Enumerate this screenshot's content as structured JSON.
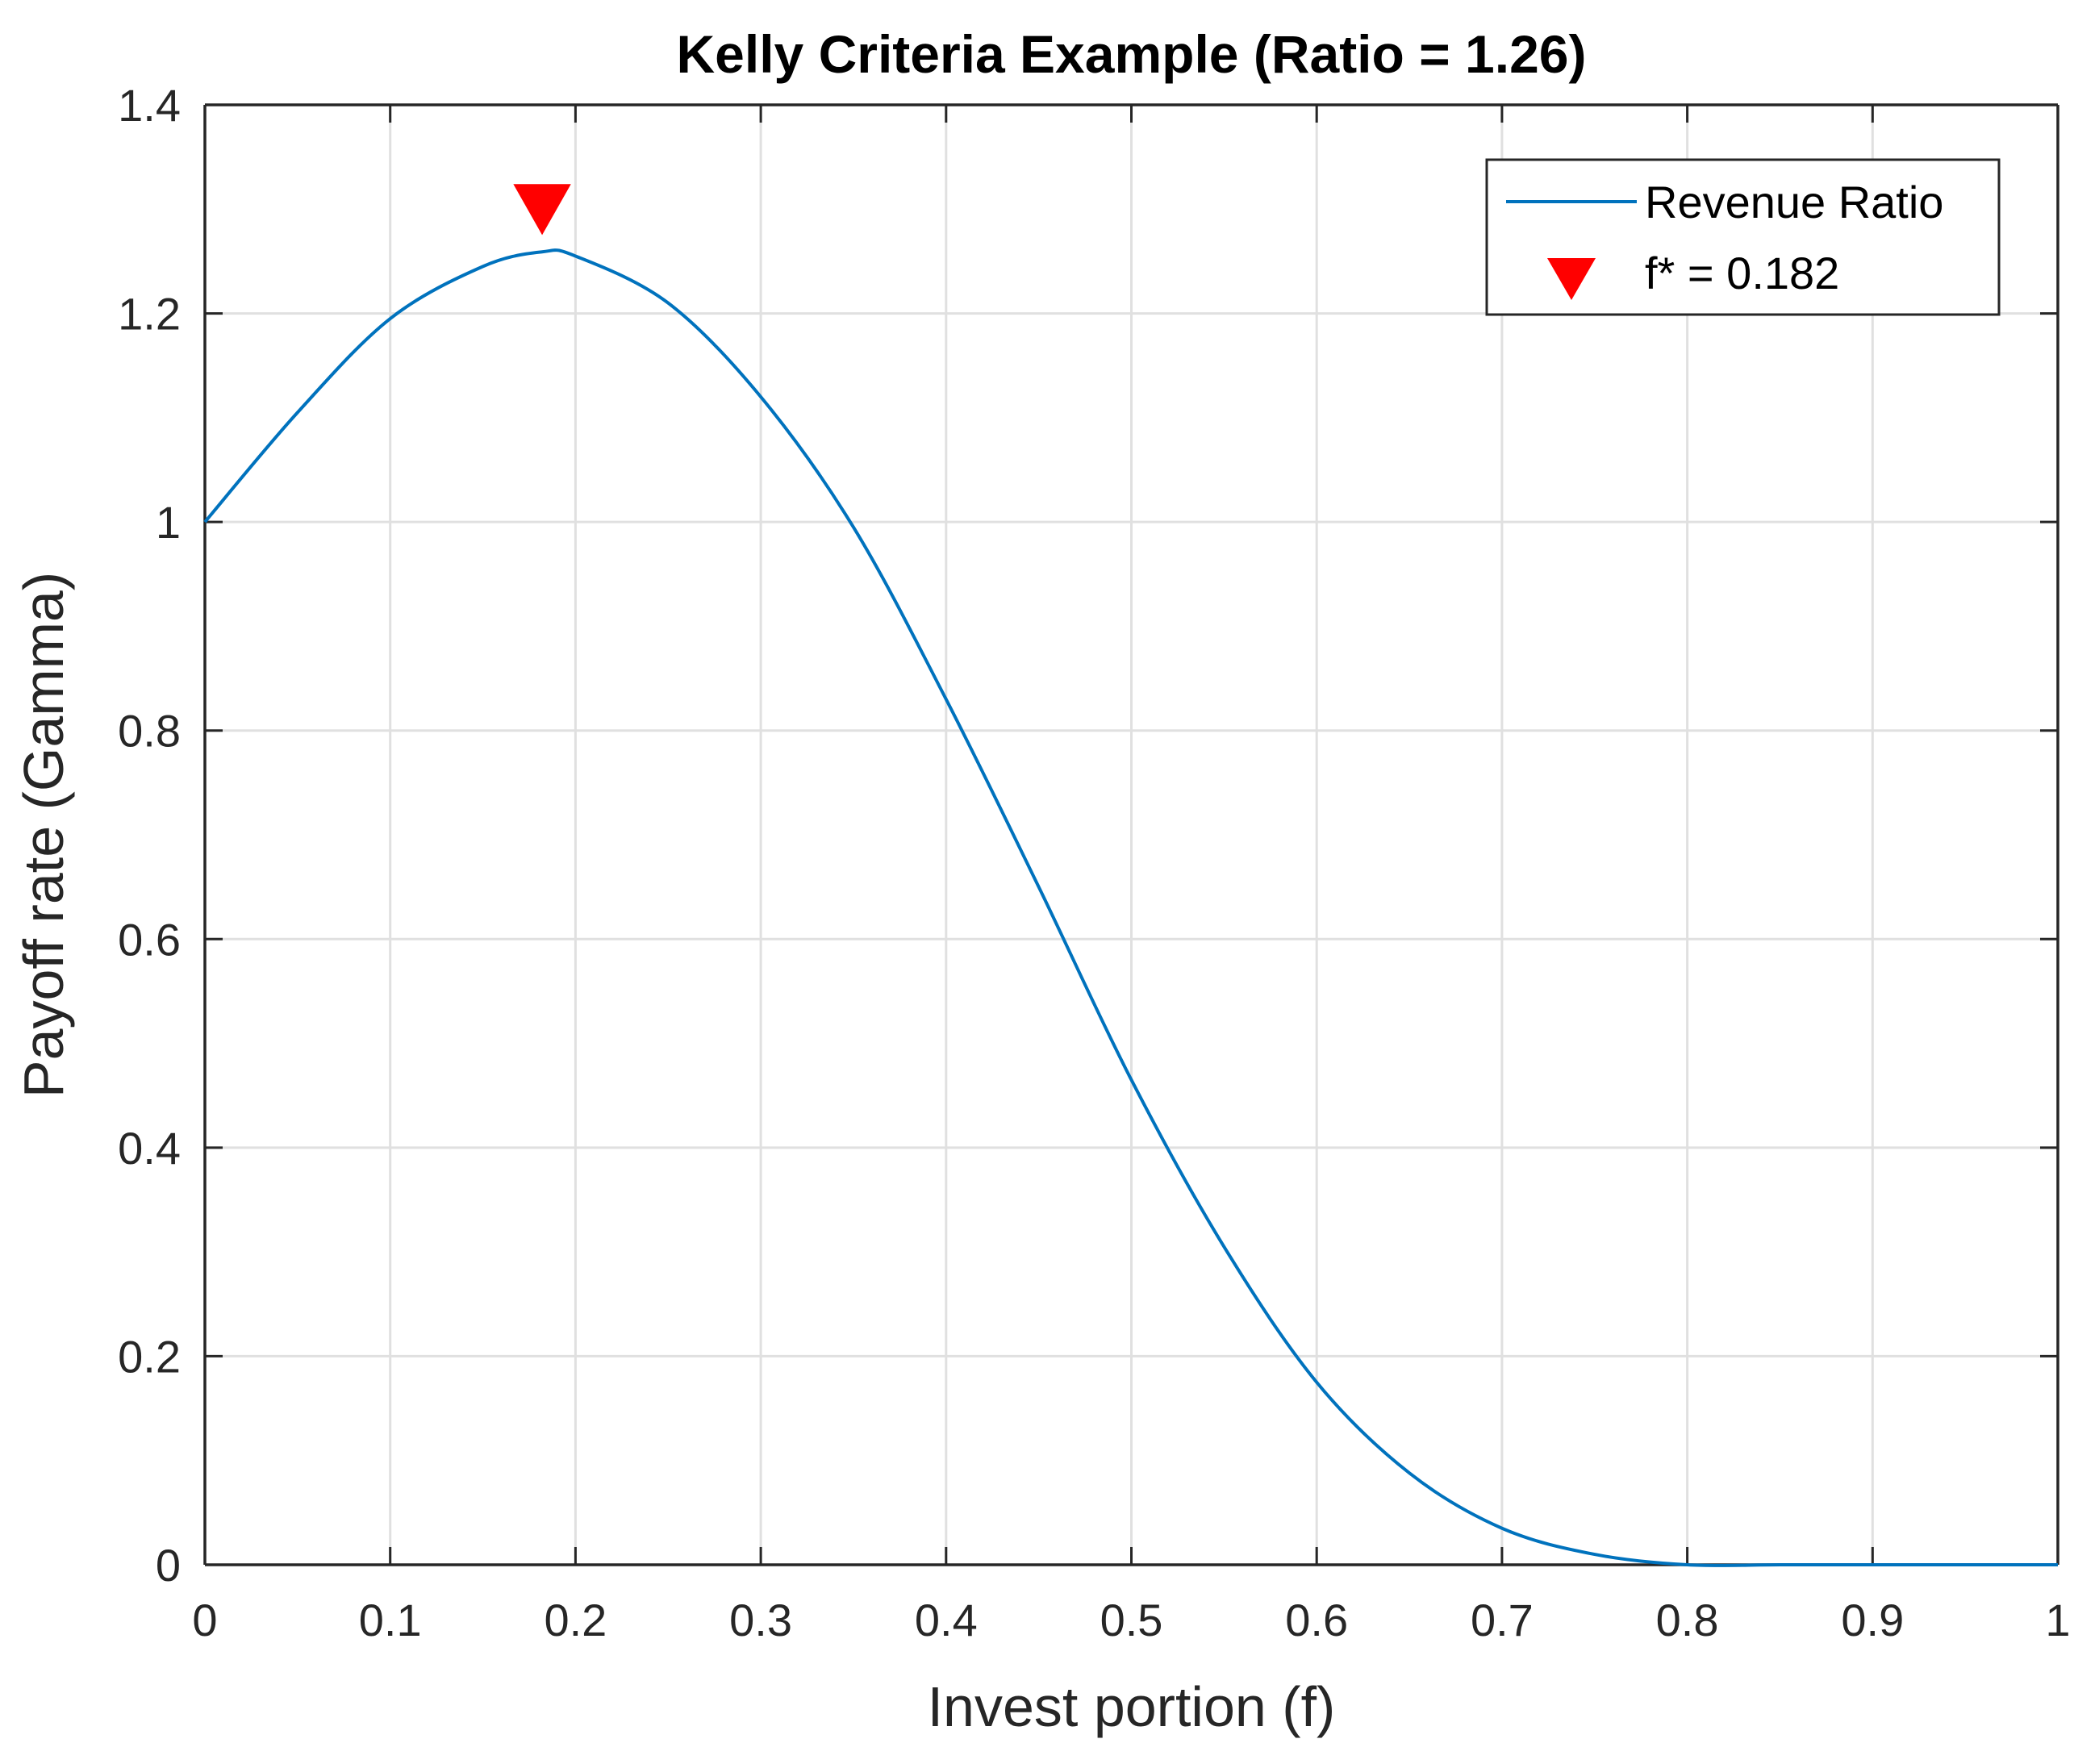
{
  "chart_data": {
    "type": "line",
    "title": "Kelly Criteria Example (Ratio = 1.26)",
    "xlabel": "Invest portion (f)",
    "ylabel": "Payoff rate (Gamma)",
    "xlim": [
      0,
      1
    ],
    "ylim": [
      0,
      1.4
    ],
    "grid": true,
    "legend_position": "top-right",
    "xticks": [
      "0",
      "0.1",
      "0.2",
      "0.3",
      "0.4",
      "0.5",
      "0.6",
      "0.7",
      "0.8",
      "0.9",
      "1"
    ],
    "yticks": [
      "0",
      "0.2",
      "0.4",
      "0.6",
      "0.8",
      "1",
      "1.2",
      "1.4"
    ],
    "series": [
      {
        "name": "Revenue Ratio",
        "color": "#0072BD",
        "x": [
          0,
          0.05,
          0.1,
          0.15,
          0.182,
          0.2,
          0.25,
          0.3,
          0.35,
          0.4,
          0.45,
          0.5,
          0.55,
          0.6,
          0.65,
          0.7,
          0.75,
          0.8,
          0.85,
          0.9,
          0.95,
          1.0
        ],
        "y": [
          1.0,
          1.105,
          1.195,
          1.245,
          1.259,
          1.255,
          1.21,
          1.12,
          0.995,
          0.83,
          0.65,
          0.465,
          0.305,
          0.175,
          0.088,
          0.035,
          0.01,
          0.0,
          0.0,
          0.0,
          0.0,
          0.0
        ]
      }
    ],
    "marker": {
      "name": "f* = 0.182",
      "x": 0.182,
      "y": 1.3,
      "color": "#FF0000",
      "shape": "triangle-down"
    }
  }
}
